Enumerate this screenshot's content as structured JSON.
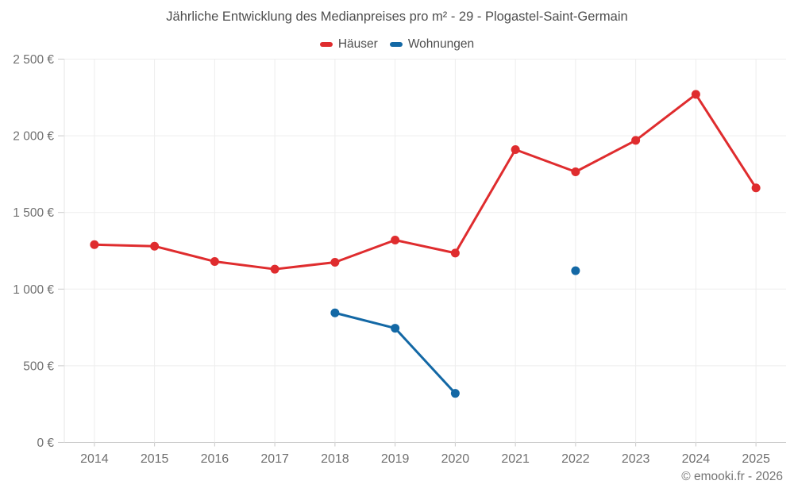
{
  "chart_data": {
    "type": "line",
    "title": "Jährliche Entwicklung des Medianpreises pro m² - 29 - Plogastel-Saint-Germain",
    "xlabel": "",
    "ylabel": "",
    "categories": [
      "2014",
      "2015",
      "2016",
      "2017",
      "2018",
      "2019",
      "2020",
      "2021",
      "2022",
      "2023",
      "2024",
      "2025"
    ],
    "series": [
      {
        "name": "Häuser",
        "color": "#df2c2e",
        "values": [
          1290,
          1280,
          1180,
          1130,
          1175,
          1320,
          1235,
          1910,
          1765,
          1970,
          2270,
          1660
        ]
      },
      {
        "name": "Wohnungen",
        "color": "#1368a5",
        "values": [
          null,
          null,
          null,
          null,
          845,
          745,
          320,
          null,
          1120,
          null,
          null,
          null
        ]
      }
    ],
    "ylim": [
      0,
      2500
    ],
    "yticks": [
      0,
      500,
      1000,
      1500,
      2000,
      2500
    ],
    "ytick_labels": [
      "0 €",
      "500 €",
      "1 000 €",
      "1 500 €",
      "2 000 €",
      "2 500 €"
    ],
    "grid": true,
    "legend_position": "top",
    "annotation": "© emooki.fr - 2026"
  }
}
